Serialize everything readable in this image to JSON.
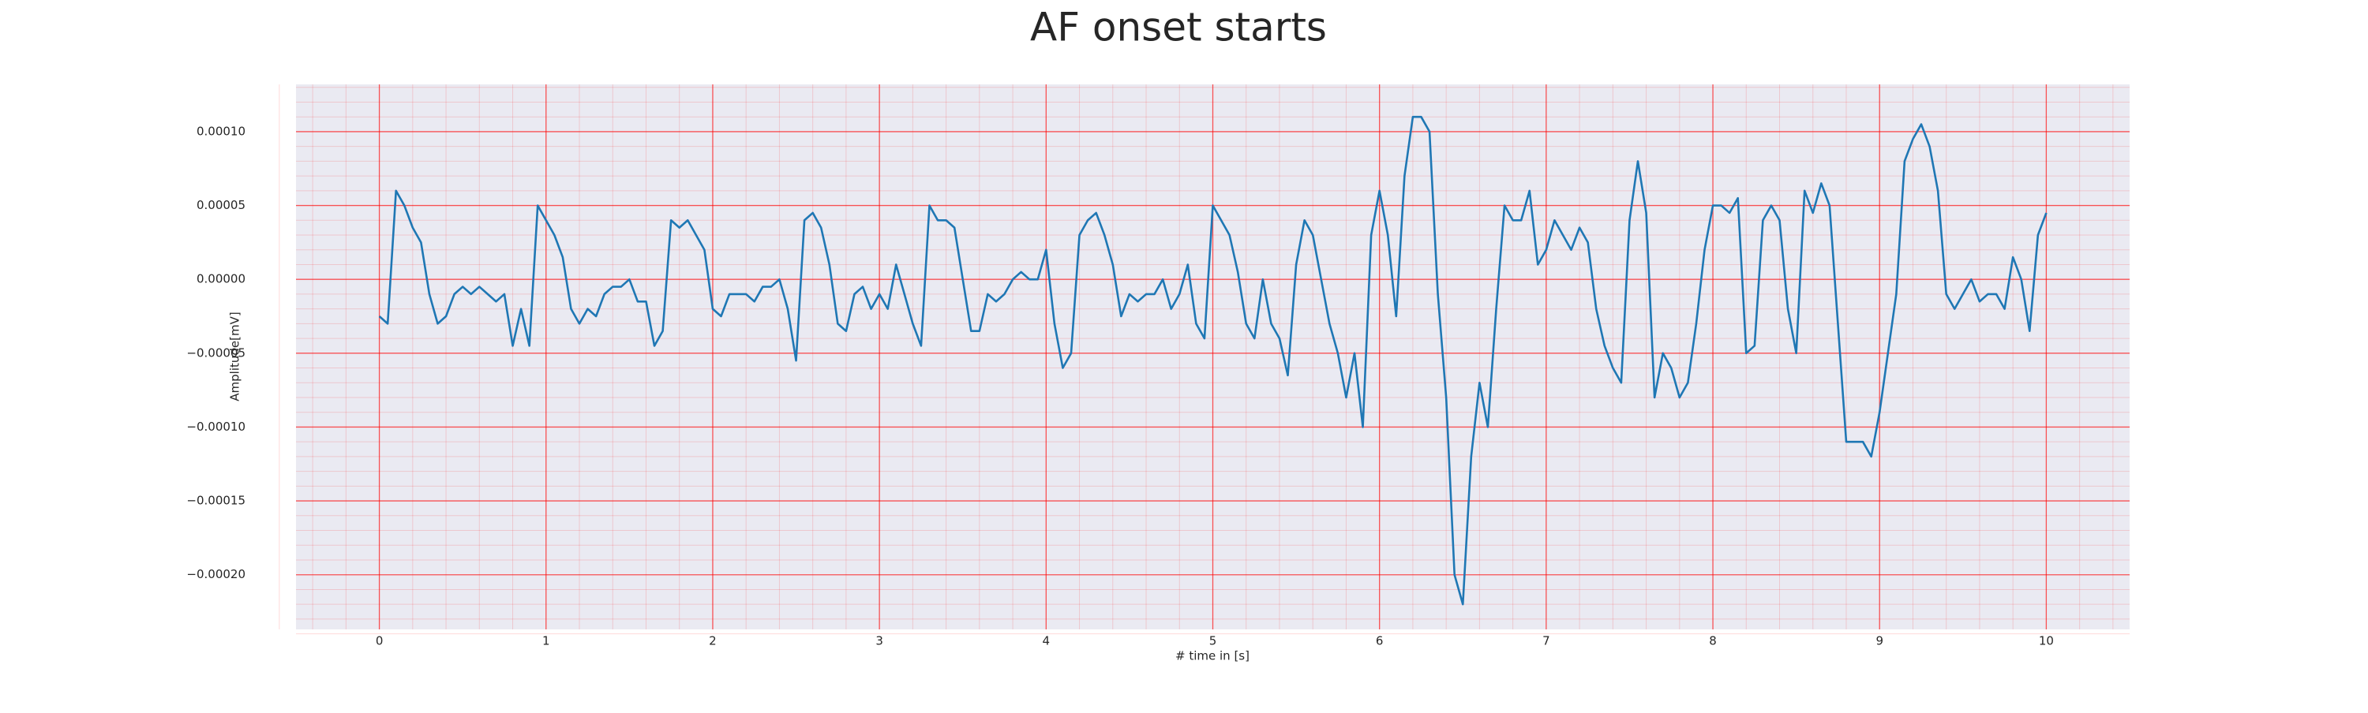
{
  "chart_data": {
    "type": "line",
    "title": "AF onset starts",
    "xlabel": "# time in [s]",
    "ylabel": "Amplitude[mV]",
    "color": "#1f77b4",
    "background": "#eaeaf2",
    "grid": true,
    "grid_color": "#ff0000",
    "minor_grid": true,
    "xlim": [
      -0.5,
      10.5
    ],
    "ylim": [
      -0.000237,
      0.000132
    ],
    "xticks": [
      0,
      1,
      2,
      3,
      4,
      5,
      6,
      7,
      8,
      9,
      10
    ],
    "yticks": [
      {
        "value": -0.0002,
        "label": "−0.00020"
      },
      {
        "value": -0.00015,
        "label": "−0.00015"
      },
      {
        "value": -0.0001,
        "label": "−0.00010"
      },
      {
        "value": -5e-05,
        "label": "−0.00005"
      },
      {
        "value": 0,
        "label": "0.00000"
      },
      {
        "value": 5e-05,
        "label": "0.00005"
      },
      {
        "value": 0.0001,
        "label": "0.00010"
      }
    ],
    "x": [
      0,
      0.05,
      0.1,
      0.15,
      0.2,
      0.25,
      0.3,
      0.35,
      0.4,
      0.45,
      0.5,
      0.55,
      0.6,
      0.65,
      0.7,
      0.75,
      0.8,
      0.85,
      0.9,
      0.95,
      1,
      1.05,
      1.1,
      1.15,
      1.2,
      1.25,
      1.3,
      1.35,
      1.4,
      1.45,
      1.5,
      1.55,
      1.6,
      1.65,
      1.7,
      1.75,
      1.8,
      1.85,
      1.9,
      1.95,
      2,
      2.05,
      2.1,
      2.15,
      2.2,
      2.25,
      2.3,
      2.35,
      2.4,
      2.45,
      2.5,
      2.55,
      2.6,
      2.65,
      2.7,
      2.75,
      2.8,
      2.85,
      2.9,
      2.95,
      3,
      3.05,
      3.1,
      3.15,
      3.2,
      3.25,
      3.3,
      3.35,
      3.4,
      3.45,
      3.5,
      3.55,
      3.6,
      3.65,
      3.7,
      3.75,
      3.8,
      3.85,
      3.9,
      3.95,
      4,
      4.05,
      4.1,
      4.15,
      4.2,
      4.25,
      4.3,
      4.35,
      4.4,
      4.45,
      4.5,
      4.55,
      4.6,
      4.65,
      4.7,
      4.75,
      4.8,
      4.85,
      4.9,
      4.95,
      5,
      5.05,
      5.1,
      5.15,
      5.2,
      5.25,
      5.3,
      5.35,
      5.4,
      5.45,
      5.5,
      5.55,
      5.6,
      5.65,
      5.7,
      5.75,
      5.8,
      5.85,
      5.9,
      5.95,
      6,
      6.05,
      6.1,
      6.15,
      6.2,
      6.25,
      6.3,
      6.35,
      6.4,
      6.45,
      6.5,
      6.55,
      6.6,
      6.65,
      6.7,
      6.75,
      6.8,
      6.85,
      6.9,
      6.95,
      7,
      7.05,
      7.1,
      7.15,
      7.2,
      7.25,
      7.3,
      7.35,
      7.4,
      7.45,
      7.5,
      7.55,
      7.6,
      7.65,
      7.7,
      7.75,
      7.8,
      7.85,
      7.9,
      7.95,
      8,
      8.05,
      8.1,
      8.15,
      8.2,
      8.25,
      8.3,
      8.35,
      8.4,
      8.45,
      8.5,
      8.55,
      8.6,
      8.65,
      8.7,
      8.75,
      8.8,
      8.85,
      8.9,
      8.95,
      9,
      9.05,
      9.1,
      9.15,
      9.2,
      9.25,
      9.3,
      9.35,
      9.4,
      9.45,
      9.5,
      9.55,
      9.6,
      9.65,
      9.7,
      9.75,
      9.8,
      9.85,
      9.9,
      9.95,
      10
    ],
    "values": [
      -2.5e-05,
      -3e-05,
      6e-05,
      5e-05,
      3.5e-05,
      2.5e-05,
      -1e-05,
      -3e-05,
      -2.5e-05,
      -1e-05,
      -5e-06,
      -1e-05,
      -5e-06,
      -1e-05,
      -1.5e-05,
      -1e-05,
      -4.5e-05,
      -2e-05,
      -4.5e-05,
      5e-05,
      4e-05,
      3e-05,
      1.5e-05,
      -2e-05,
      -3e-05,
      -2e-05,
      -2.5e-05,
      -1e-05,
      -5e-06,
      -5e-06,
      0,
      -1.5e-05,
      -1.5e-05,
      -4.5e-05,
      -3.5e-05,
      4e-05,
      3.5e-05,
      4e-05,
      3e-05,
      2e-05,
      -2e-05,
      -2.5e-05,
      -1e-05,
      -1e-05,
      -1e-05,
      -1.5e-05,
      -5e-06,
      -5e-06,
      0,
      -2e-05,
      -5.5e-05,
      4e-05,
      4.5e-05,
      3.5e-05,
      1e-05,
      -3e-05,
      -3.5e-05,
      -1e-05,
      -5e-06,
      -2e-05,
      -1e-05,
      -2e-05,
      1e-05,
      -1e-05,
      -3e-05,
      -4.5e-05,
      5e-05,
      4e-05,
      4e-05,
      3.5e-05,
      0,
      -3.5e-05,
      -3.5e-05,
      -1e-05,
      -1.5e-05,
      -1e-05,
      0,
      5e-06,
      0,
      0,
      2e-05,
      -3e-05,
      -6e-05,
      -5e-05,
      3e-05,
      4e-05,
      4.5e-05,
      3e-05,
      1e-05,
      -2.5e-05,
      -1e-05,
      -1.5e-05,
      -1e-05,
      -1e-05,
      0,
      -2e-05,
      -1e-05,
      1e-05,
      -3e-05,
      -4e-05,
      5e-05,
      4e-05,
      3e-05,
      5e-06,
      -3e-05,
      -4e-05,
      0,
      -3e-05,
      -4e-05,
      -6.5e-05,
      1e-05,
      4e-05,
      3e-05,
      0,
      -3e-05,
      -5e-05,
      -8e-05,
      -5e-05,
      -0.0001,
      3e-05,
      6e-05,
      3e-05,
      -2.5e-05,
      7e-05,
      0.00011,
      0.00011,
      0.0001,
      -1e-05,
      -8e-05,
      -0.0002,
      -0.00022,
      -0.00012,
      -7e-05,
      -0.0001,
      -2e-05,
      5e-05,
      4e-05,
      4e-05,
      6e-05,
      1e-05,
      2e-05,
      4e-05,
      3e-05,
      2e-05,
      3.5e-05,
      2.5e-05,
      -2e-05,
      -4.5e-05,
      -6e-05,
      -7e-05,
      4e-05,
      8e-05,
      4.5e-05,
      -8e-05,
      -5e-05,
      -6e-05,
      -8e-05,
      -7e-05,
      -3e-05,
      2e-05,
      5e-05,
      5e-05,
      4.5e-05,
      5.5e-05,
      -5e-05,
      -4.5e-05,
      4e-05,
      5e-05,
      4e-05,
      -2e-05,
      -5e-05,
      6e-05,
      4.5e-05,
      6.5e-05,
      5e-05,
      -3e-05,
      -0.00011,
      -0.00011,
      -0.00011,
      -0.00012,
      -9e-05,
      -5e-05,
      -1e-05,
      8e-05,
      9.5e-05,
      0.000105,
      9e-05,
      6e-05,
      -1e-05,
      -2e-05,
      -1e-05,
      0,
      -1.5e-05,
      -1e-05,
      -1e-05,
      -2e-05,
      1.5e-05,
      0,
      -3.5e-05,
      3e-05,
      4.5e-05
    ]
  }
}
